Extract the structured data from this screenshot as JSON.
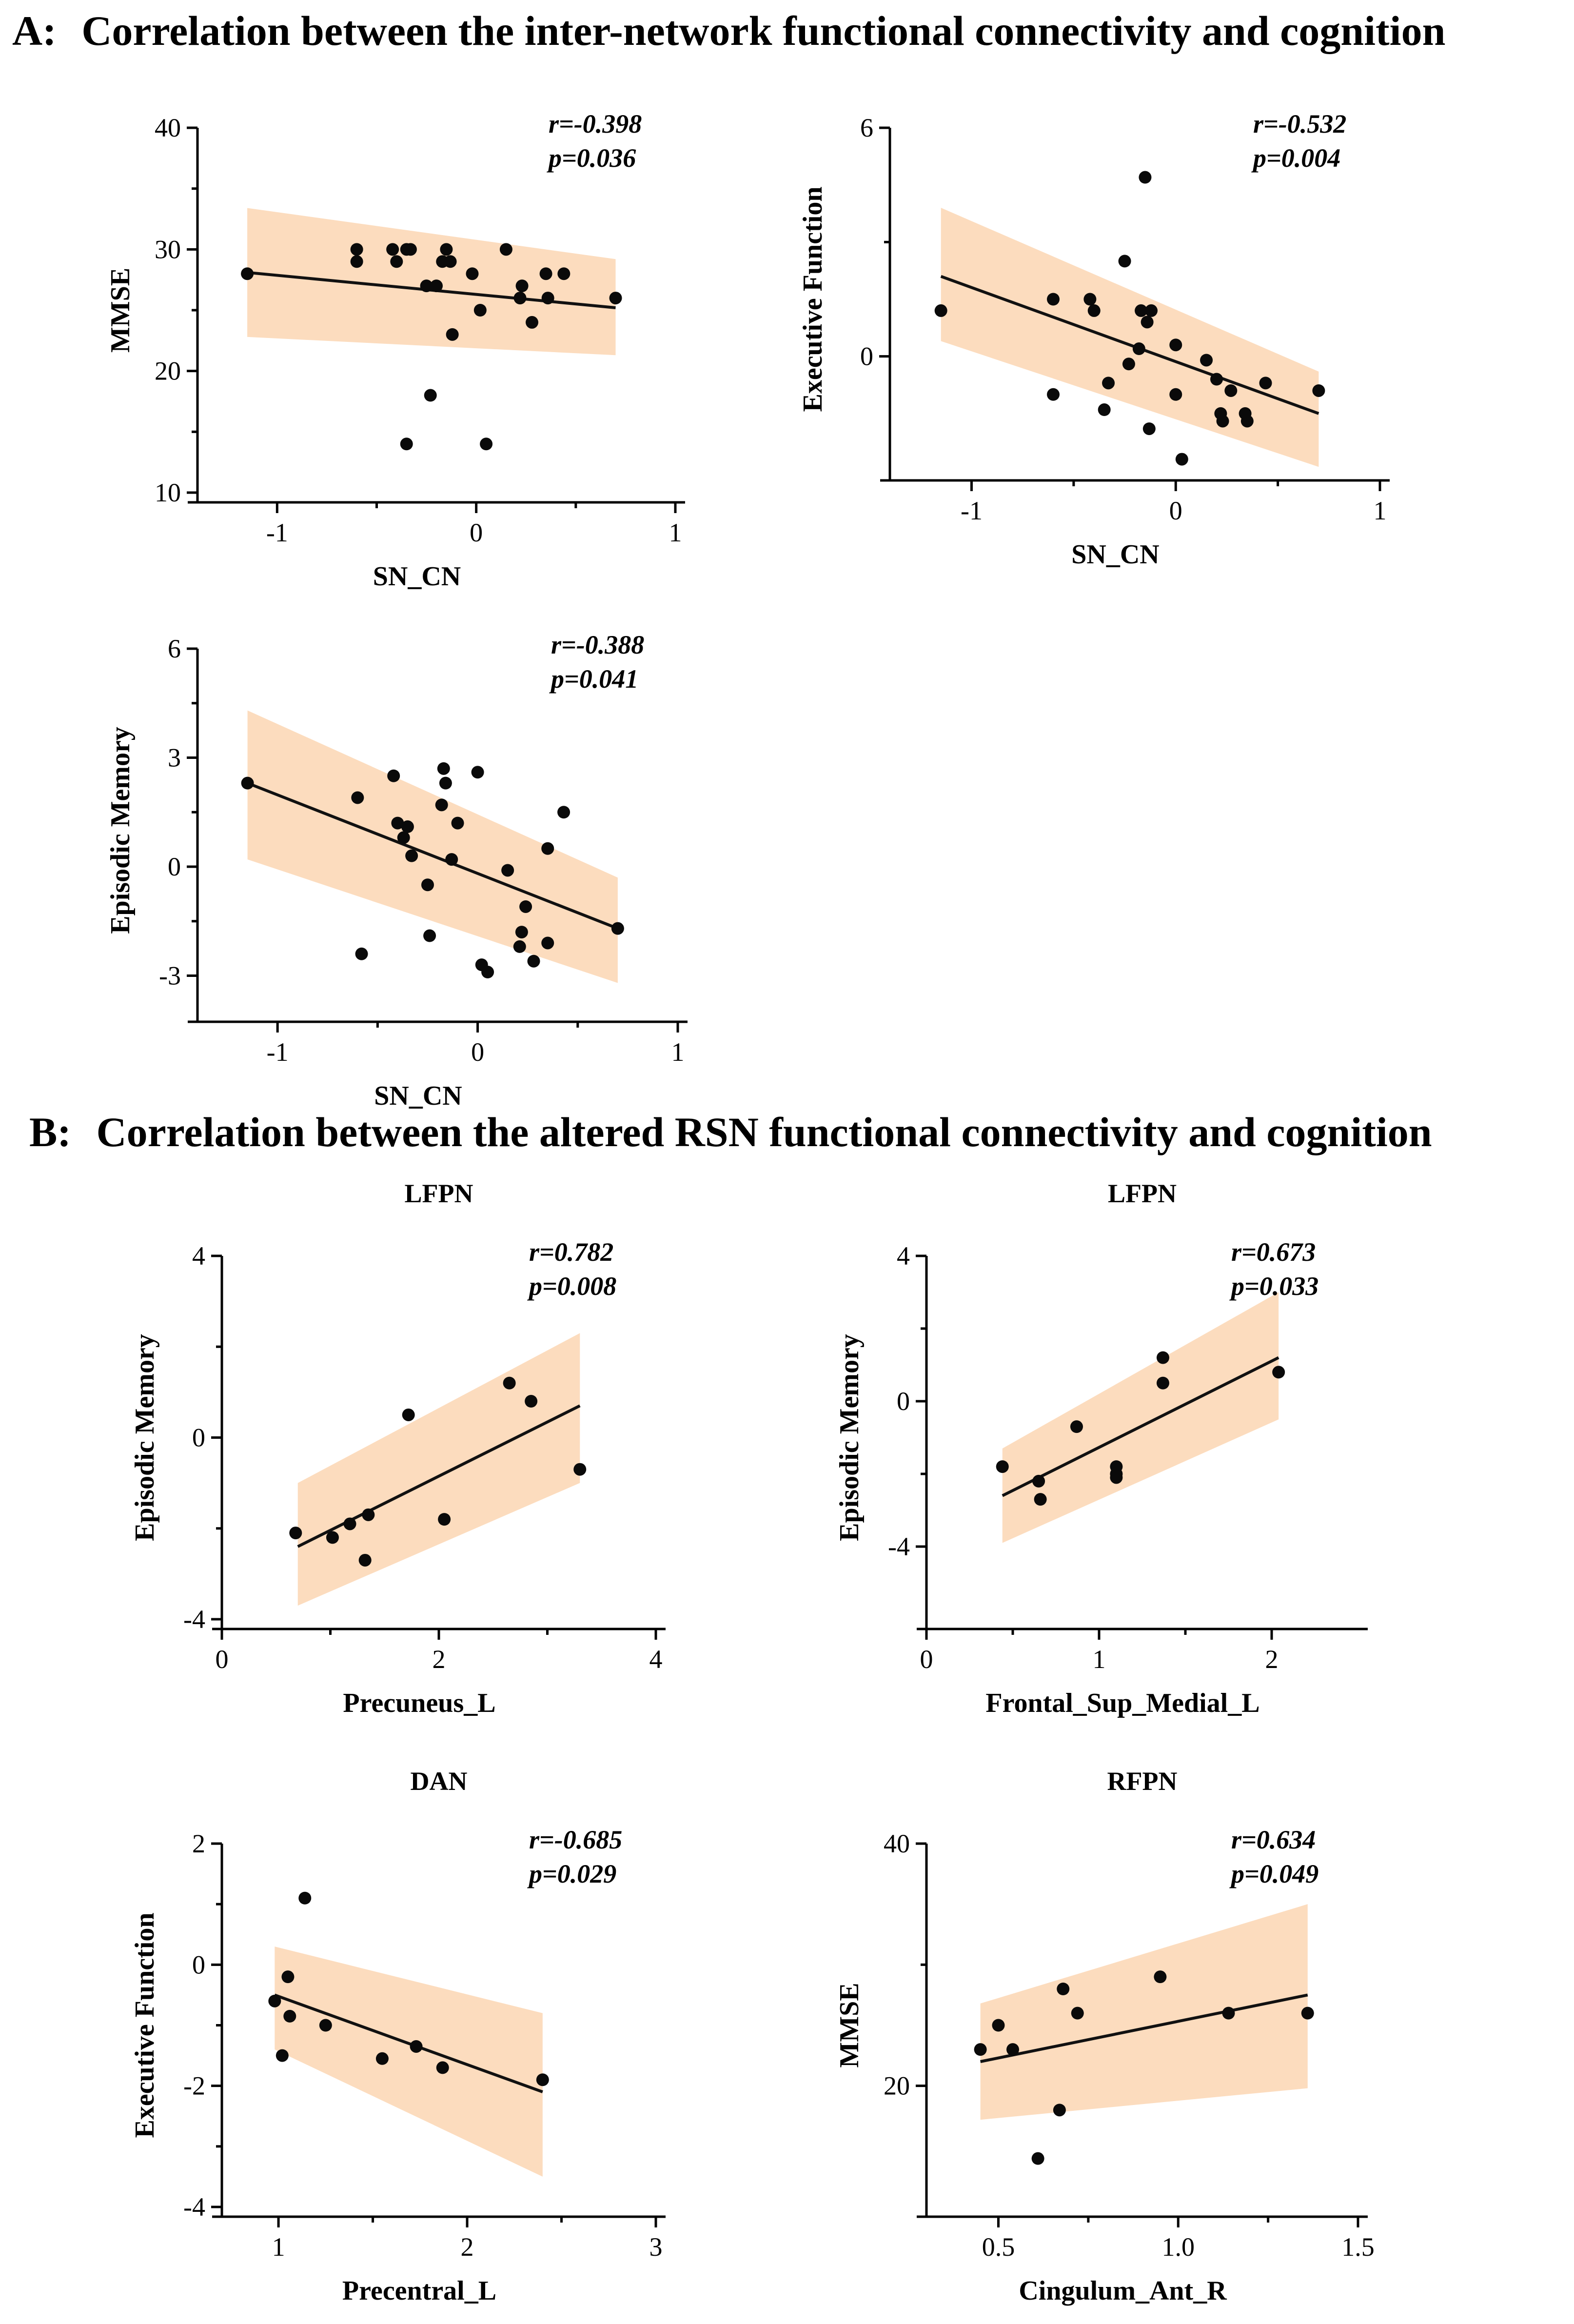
{
  "colors": {
    "ci_band": "#fcdcbe",
    "points": "#0a0a0a",
    "fit_line": "#111111",
    "text": "#000000"
  },
  "sections": [
    {
      "id": "A",
      "label": "A:",
      "title": "Correlation between the inter-network functional connectivity and cognition"
    },
    {
      "id": "B",
      "label": "B:",
      "title": "Correlation between the altered RSN functional connectivity and cognition"
    }
  ],
  "chart_data": [
    {
      "type": "scatter",
      "section": "A",
      "title": "",
      "xlabel": "SN_CN",
      "ylabel": "MMSE",
      "xlim": [
        -1.4,
        1
      ],
      "ylim": [
        10,
        40
      ],
      "xticks": [
        -1,
        0,
        1
      ],
      "yticks": [
        10,
        20,
        30,
        40
      ],
      "stats": {
        "r": "r=-0.398",
        "p": "p=0.036"
      },
      "fit": {
        "x": [
          -1.15,
          0.7
        ],
        "y": [
          28.1,
          25.2
        ]
      },
      "ci": {
        "x": [
          -1.15,
          0.7
        ],
        "upper": [
          33.4,
          29.2
        ],
        "lower": [
          22.8,
          21.3
        ]
      },
      "points": {
        "x": [
          -1.15,
          -0.6,
          -0.6,
          -0.42,
          -0.4,
          -0.35,
          -0.33,
          -0.25,
          -0.2,
          -0.17,
          -0.15,
          -0.13,
          -0.12,
          -0.02,
          0.02,
          0.15,
          0.22,
          0.23,
          0.28,
          0.35,
          0.36,
          0.44,
          0.7,
          -0.35,
          -0.23,
          0.05
        ],
        "y": [
          28,
          30,
          29,
          30,
          29,
          30,
          30,
          27,
          27,
          29,
          30,
          29,
          23,
          28,
          25,
          30,
          26,
          27,
          24,
          28,
          26,
          28,
          26,
          14,
          18,
          14
        ]
      }
    },
    {
      "type": "scatter",
      "section": "A",
      "title": "",
      "xlabel": "SN_CN",
      "ylabel": "Executive Function",
      "xlim": [
        -1.4,
        1
      ],
      "ylim": [
        -3,
        6
      ],
      "xticks": [
        -1,
        0,
        1
      ],
      "yticks": [
        0,
        6
      ],
      "stats": {
        "r": "r=-0.532",
        "p": "p=0.004"
      },
      "fit": {
        "x": [
          -1.15,
          0.7
        ],
        "y": [
          2.1,
          -1.5
        ]
      },
      "ci": {
        "x": [
          -1.15,
          0.7
        ],
        "upper": [
          3.9,
          -0.4
        ],
        "lower": [
          0.4,
          -2.9
        ]
      },
      "points": {
        "x": [
          -1.15,
          -0.6,
          -0.6,
          -0.42,
          -0.4,
          -0.35,
          -0.33,
          -0.25,
          -0.23,
          -0.18,
          -0.17,
          -0.15,
          -0.14,
          -0.13,
          -0.12,
          0.0,
          0.0,
          0.03,
          0.15,
          0.2,
          0.22,
          0.23,
          0.27,
          0.34,
          0.35,
          0.44,
          0.7
        ],
        "y": [
          1.2,
          1.5,
          -1.0,
          1.5,
          1.2,
          -1.4,
          -0.7,
          2.5,
          -0.2,
          0.2,
          1.2,
          4.7,
          0.9,
          -1.9,
          1.2,
          0.3,
          -1.0,
          -2.7,
          -0.1,
          -0.6,
          -1.5,
          -1.7,
          -0.9,
          -1.5,
          -1.7,
          -0.7,
          -0.9
        ]
      }
    },
    {
      "type": "scatter",
      "section": "A",
      "title": "",
      "xlabel": "SN_CN",
      "ylabel": "Episodic Memory",
      "xlim": [
        -1.4,
        1
      ],
      "ylim": [
        -4,
        6
      ],
      "xticks": [
        -1,
        0,
        1
      ],
      "yticks": [
        -3,
        0,
        3,
        6
      ],
      "stats": {
        "r": "r=-0.388",
        "p": "p=0.041"
      },
      "fit": {
        "x": [
          -1.15,
          0.7
        ],
        "y": [
          2.3,
          -1.7
        ]
      },
      "ci": {
        "x": [
          -1.15,
          0.7
        ],
        "upper": [
          4.3,
          -0.3
        ],
        "lower": [
          0.2,
          -3.2
        ]
      },
      "points": {
        "x": [
          -1.15,
          -0.6,
          -0.58,
          -0.42,
          -0.4,
          -0.37,
          -0.35,
          -0.33,
          -0.25,
          -0.24,
          -0.18,
          -0.17,
          -0.16,
          -0.13,
          -0.1,
          0.0,
          0.02,
          0.05,
          0.15,
          0.21,
          0.22,
          0.24,
          0.28,
          0.35,
          0.35,
          0.43,
          0.7
        ],
        "y": [
          2.3,
          1.9,
          -2.4,
          2.5,
          1.2,
          0.8,
          1.1,
          0.3,
          -0.5,
          -1.9,
          1.7,
          2.7,
          2.3,
          0.2,
          1.2,
          2.6,
          -2.7,
          -2.9,
          -0.1,
          -2.2,
          -1.8,
          -1.1,
          -2.6,
          0.5,
          -2.1,
          1.5,
          -1.7
        ]
      }
    },
    {
      "type": "scatter",
      "section": "B",
      "title": "LFPN",
      "xlabel": "Precuneus_L",
      "ylabel": "Episodic Memory",
      "xlim": [
        0,
        4
      ],
      "ylim": [
        -4,
        4
      ],
      "xticks": [
        0,
        2,
        4
      ],
      "yticks": [
        -4,
        0,
        4
      ],
      "stats": {
        "r": "r=0.782",
        "p": "p=0.008"
      },
      "fit": {
        "x": [
          0.7,
          3.3
        ],
        "y": [
          -2.4,
          0.7
        ]
      },
      "ci": {
        "x": [
          0.7,
          3.3
        ],
        "upper": [
          -1.0,
          2.3
        ],
        "lower": [
          -3.7,
          -1.0
        ]
      },
      "points": {
        "x": [
          0.68,
          1.02,
          1.18,
          1.32,
          1.35,
          1.72,
          2.05,
          2.65,
          2.85,
          3.3
        ],
        "y": [
          -2.1,
          -2.2,
          -1.9,
          -2.7,
          -1.7,
          0.5,
          -1.8,
          1.2,
          0.8,
          -0.7
        ]
      }
    },
    {
      "type": "scatter",
      "section": "B",
      "title": "LFPN",
      "xlabel": "Frontal_Sup_Medial_L",
      "ylabel": "Episodic Memory",
      "xlim": [
        0,
        2.5
      ],
      "ylim": [
        -6,
        4
      ],
      "xticks": [
        0,
        1,
        2
      ],
      "yticks": [
        -4,
        0,
        4
      ],
      "stats": {
        "r": "r=0.673",
        "p": "p=0.033"
      },
      "fit": {
        "x": [
          0.44,
          2.04
        ],
        "y": [
          -2.6,
          1.2
        ]
      },
      "ci": {
        "x": [
          0.44,
          2.04
        ],
        "upper": [
          -1.3,
          3.0
        ],
        "lower": [
          -3.9,
          -0.5
        ]
      },
      "points": {
        "x": [
          0.44,
          0.65,
          0.66,
          0.87,
          1.1,
          1.1,
          1.1,
          1.37,
          1.37,
          2.04
        ],
        "y": [
          -1.8,
          -2.2,
          -2.7,
          -0.7,
          -1.8,
          -2.0,
          -2.1,
          1.2,
          0.5,
          0.8
        ]
      }
    },
    {
      "type": "scatter",
      "section": "B",
      "title": "DAN",
      "xlabel": "Precentral_L",
      "ylabel": "Executive Function",
      "xlim": [
        0.7,
        3
      ],
      "ylim": [
        -4,
        2
      ],
      "xticks": [
        1,
        2,
        3
      ],
      "yticks": [
        -4,
        -2,
        0,
        2
      ],
      "stats": {
        "r": "r=-0.685",
        "p": "p=0.029"
      },
      "fit": {
        "x": [
          0.98,
          2.4
        ],
        "y": [
          -0.5,
          -2.1
        ]
      },
      "ci": {
        "x": [
          0.98,
          2.4
        ],
        "upper": [
          0.3,
          -0.8
        ],
        "lower": [
          -1.4,
          -3.5
        ]
      },
      "points": {
        "x": [
          0.98,
          1.02,
          1.05,
          1.06,
          1.14,
          1.25,
          1.55,
          1.73,
          1.87,
          2.4
        ],
        "y": [
          -0.6,
          -1.5,
          -0.2,
          -0.85,
          1.1,
          -1.0,
          -1.55,
          -1.35,
          -1.7,
          -1.9
        ]
      }
    },
    {
      "type": "scatter",
      "section": "B",
      "title": "RFPN",
      "xlabel": "Cingulum_Ant_R",
      "ylabel": "MMSE",
      "xlim": [
        0.3,
        1.5
      ],
      "ylim": [
        10,
        40
      ],
      "xticks": [
        0.5,
        1.0,
        1.5
      ],
      "yticks": [
        20,
        40
      ],
      "stats": {
        "r": "r=0.634",
        "p": "p=0.049"
      },
      "fit": {
        "x": [
          0.45,
          1.36
        ],
        "y": [
          22.0,
          27.5
        ]
      },
      "ci": {
        "x": [
          0.45,
          1.36
        ],
        "upper": [
          26.8,
          35.0
        ],
        "lower": [
          17.2,
          19.8
        ]
      },
      "points": {
        "x": [
          0.45,
          0.5,
          0.54,
          0.61,
          0.67,
          0.68,
          0.72,
          0.95,
          1.14,
          1.36
        ],
        "y": [
          23,
          25,
          23,
          14,
          18,
          28,
          26,
          29,
          26,
          26
        ]
      }
    }
  ]
}
